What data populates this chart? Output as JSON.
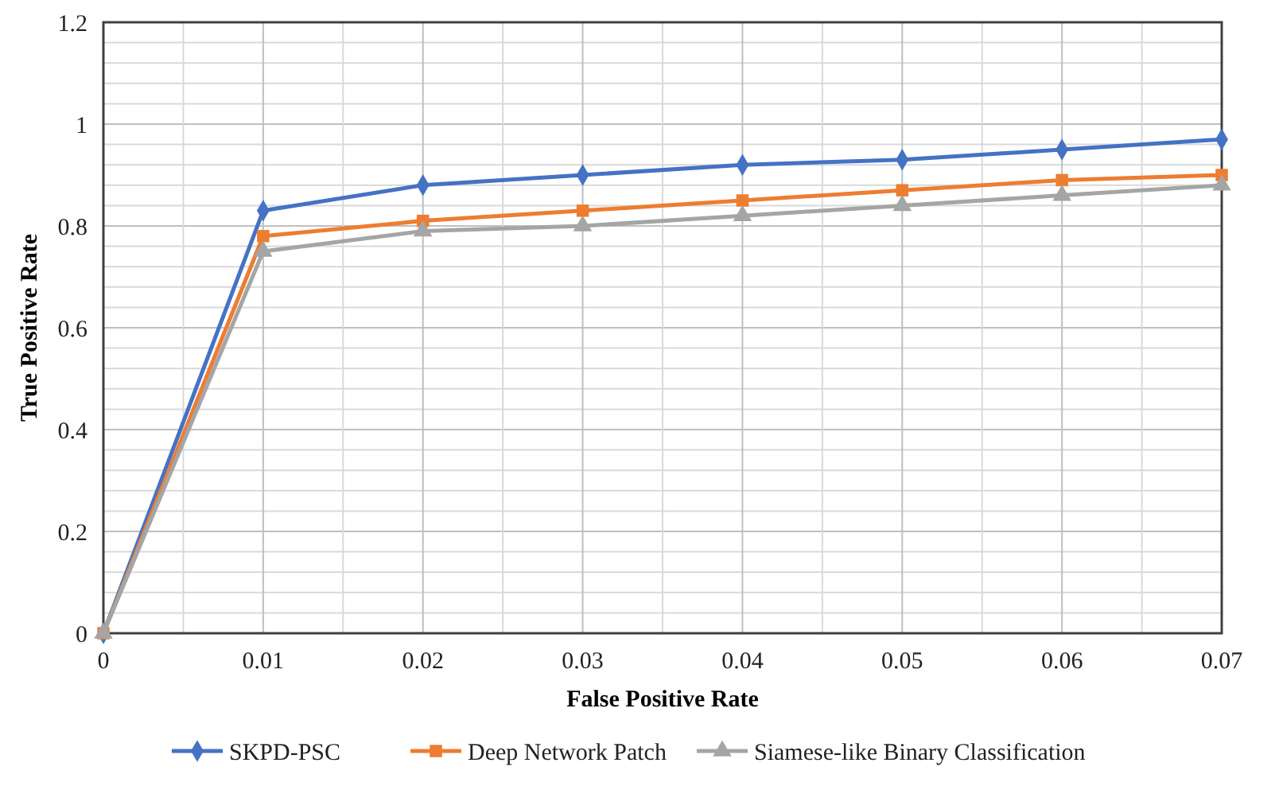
{
  "chart_data": {
    "type": "line",
    "xlabel": "False Positive Rate",
    "ylabel": "True Positive Rate",
    "x": [
      0,
      0.01,
      0.02,
      0.03,
      0.04,
      0.05,
      0.06,
      0.07
    ],
    "xlim": [
      0,
      0.07
    ],
    "xticks": [
      0,
      {
        "value": 0.005,
        "label": null
      },
      0.01,
      {
        "value": 0.015,
        "label": null
      },
      0.02,
      {
        "value": 0.025,
        "label": null
      },
      0.03,
      {
        "value": 0.035,
        "label": null
      },
      0.04,
      {
        "value": 0.045,
        "label": null
      },
      0.05,
      {
        "value": 0.055,
        "label": null
      },
      0.06,
      {
        "value": 0.065,
        "label": null
      },
      0.07
    ],
    "ylim": [
      0,
      1.2
    ],
    "yticks": [
      0,
      {
        "value": 0.04,
        "label": null
      },
      {
        "value": 0.08,
        "label": null
      },
      {
        "value": 0.12,
        "label": null
      },
      {
        "value": 0.16,
        "label": null
      },
      0.2,
      {
        "value": 0.24,
        "label": null
      },
      {
        "value": 0.28,
        "label": null
      },
      {
        "value": 0.32,
        "label": null
      },
      {
        "value": 0.36,
        "label": null
      },
      0.4,
      {
        "value": 0.44,
        "label": null
      },
      {
        "value": 0.48,
        "label": null
      },
      {
        "value": 0.52,
        "label": null
      },
      {
        "value": 0.56,
        "label": null
      },
      0.6,
      {
        "value": 0.64,
        "label": null
      },
      {
        "value": 0.68,
        "label": null
      },
      {
        "value": 0.72,
        "label": null
      },
      {
        "value": 0.76,
        "label": null
      },
      0.8,
      {
        "value": 0.84,
        "label": null
      },
      {
        "value": 0.88,
        "label": null
      },
      {
        "value": 0.92,
        "label": null
      },
      {
        "value": 0.96,
        "label": null
      },
      {
        "value": 1,
        "label": "1"
      },
      {
        "value": 1.04,
        "label": null
      },
      {
        "value": 1.08,
        "label": null
      },
      {
        "value": 1.12,
        "label": null
      },
      {
        "value": 1.16,
        "label": null
      },
      1.2
    ],
    "grid": true,
    "legend": "bottom",
    "line_style": "solid",
    "series": [
      {
        "name": "SKPD-PSC",
        "color": "#4472c4",
        "marker": "diamond",
        "values": [
          0,
          0.83,
          0.88,
          0.9,
          0.92,
          0.93,
          0.95,
          0.97
        ]
      },
      {
        "name": "Deep Network Patch",
        "color": "#ed7d31",
        "marker": "square",
        "values": [
          0,
          0.78,
          0.81,
          0.83,
          0.85,
          0.87,
          0.89,
          0.9
        ]
      },
      {
        "name": "Siamese-like Binary Classification",
        "color": "#a5a5a5",
        "marker": "triangle",
        "values": [
          0,
          0.75,
          0.79,
          0.8,
          0.82,
          0.84,
          0.86,
          0.88
        ]
      }
    ]
  }
}
